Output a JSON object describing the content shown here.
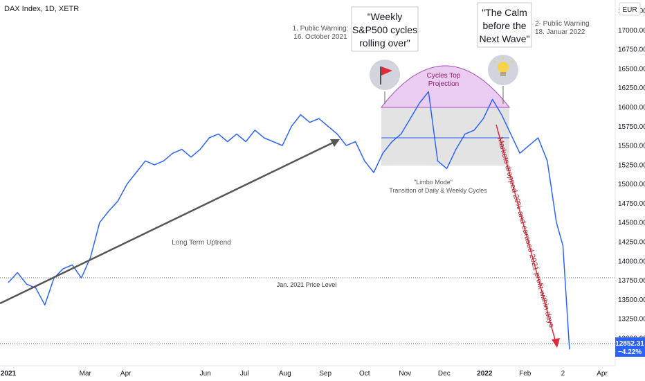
{
  "header": {
    "title": "DAX Index, 1D, XETR",
    "currency": "EUR"
  },
  "colors": {
    "price": "#2962ff",
    "uptrend_arrow": "#555555",
    "drop_arrow": "#e02a3a",
    "limbo_box": "#d9d9d9",
    "cycles_top": "#e1b8e9",
    "last_price_badge": "#2962ff"
  },
  "last_price": {
    "value": "12852.31",
    "change": "−4.22%"
  },
  "annotations": {
    "warning1_line1": "1. Public Warning:",
    "warning1_line2": "16. October 2021",
    "weekly_line1": "\"Weekly",
    "weekly_line2": "S&P500 cycles",
    "weekly_line3": "rolling over\"",
    "calm_line1": "\"The Calm",
    "calm_line2": "before the",
    "calm_line3": "Next Wave\"",
    "warning2_line1": "2- Public Warning",
    "warning2_line2": "18. Januar 2022",
    "cycles_top_line1": "Cycles Top",
    "cycles_top_line2": "Projection",
    "limbo_line1": "\"Limbo Mode\"",
    "limbo_line2": "Transition of Daily & Weekly Cycles",
    "uptrend": "Long Term Uptrend",
    "price_level": "Jan. 2021 Price Level",
    "drop": "Markets dropped 20% and earased 2021 profit within days",
    "flag_icon": "red-flag-icon",
    "bulb_icon": "light-bulb-icon"
  },
  "chart_data": {
    "type": "line",
    "title": "DAX Index, 1D, XETR",
    "x_ticks": [
      "2021",
      "Mar",
      "Apr",
      "Jun",
      "Jul",
      "Aug",
      "Sep",
      "Oct",
      "Nov",
      "Dec",
      "2022",
      "Feb",
      "2",
      "Apr"
    ],
    "y_ticks": [
      17250,
      17000,
      16750,
      16500,
      16250,
      16000,
      15750,
      15500,
      15250,
      15000,
      14750,
      14500,
      14250,
      14000,
      13750,
      13500,
      13250,
      13000
    ],
    "y_tick_labels": [
      "17250.00",
      "17000.00",
      "16750.00",
      "16500.00",
      "16250.00",
      "16000.00",
      "15750.00",
      "15500.00",
      "15250.00",
      "15000.00",
      "14750.00",
      "14500.00",
      "14250.00",
      "14000.00",
      "13750.00",
      "13500.00",
      "13250.00",
      "13000.00"
    ],
    "ylim": [
      12640,
      17390
    ],
    "x": [
      "2021-01-01",
      "2021-01-08",
      "2021-01-15",
      "2021-01-22",
      "2021-01-29",
      "2021-02-05",
      "2021-02-12",
      "2021-02-19",
      "2021-02-26",
      "2021-03-05",
      "2021-03-12",
      "2021-03-19",
      "2021-03-26",
      "2021-04-02",
      "2021-04-09",
      "2021-04-16",
      "2021-04-23",
      "2021-04-30",
      "2021-05-07",
      "2021-05-14",
      "2021-05-21",
      "2021-05-28",
      "2021-06-04",
      "2021-06-11",
      "2021-06-18",
      "2021-06-25",
      "2021-07-02",
      "2021-07-09",
      "2021-07-16",
      "2021-07-23",
      "2021-07-30",
      "2021-08-06",
      "2021-08-13",
      "2021-08-20",
      "2021-08-27",
      "2021-09-03",
      "2021-09-10",
      "2021-09-17",
      "2021-09-24",
      "2021-10-01",
      "2021-10-08",
      "2021-10-15",
      "2021-10-22",
      "2021-10-29",
      "2021-11-05",
      "2021-11-12",
      "2021-11-19",
      "2021-11-26",
      "2021-12-03",
      "2021-12-10",
      "2021-12-17",
      "2021-12-24",
      "2021-12-31",
      "2022-01-07",
      "2022-01-14",
      "2022-01-21",
      "2022-01-28",
      "2022-02-04",
      "2022-02-11",
      "2022-02-18",
      "2022-02-25",
      "2022-03-02",
      "2022-03-07"
    ],
    "series": [
      {
        "values": [
          13720,
          13850,
          13700,
          13650,
          13430,
          13780,
          13900,
          13950,
          13780,
          14050,
          14500,
          14650,
          14780,
          15000,
          15150,
          15300,
          15250,
          15300,
          15400,
          15450,
          15350,
          15450,
          15600,
          15650,
          15550,
          15650,
          15550,
          15700,
          15600,
          15550,
          15500,
          15750,
          15900,
          15800,
          15850,
          15750,
          15650,
          15500,
          15550,
          15300,
          15150,
          15400,
          15550,
          15650,
          15850,
          16050,
          16200,
          15300,
          15200,
          15450,
          15650,
          15700,
          15850,
          16100,
          15900,
          15650,
          15400,
          15500,
          15600,
          15300,
          14500,
          14200,
          12852
        ]
      }
    ],
    "markers": {
      "jan_2021_price_level": 13720,
      "limbo_range": [
        15250,
        16000
      ],
      "limbo_midline": 15560,
      "last_price": 12852.31
    }
  }
}
